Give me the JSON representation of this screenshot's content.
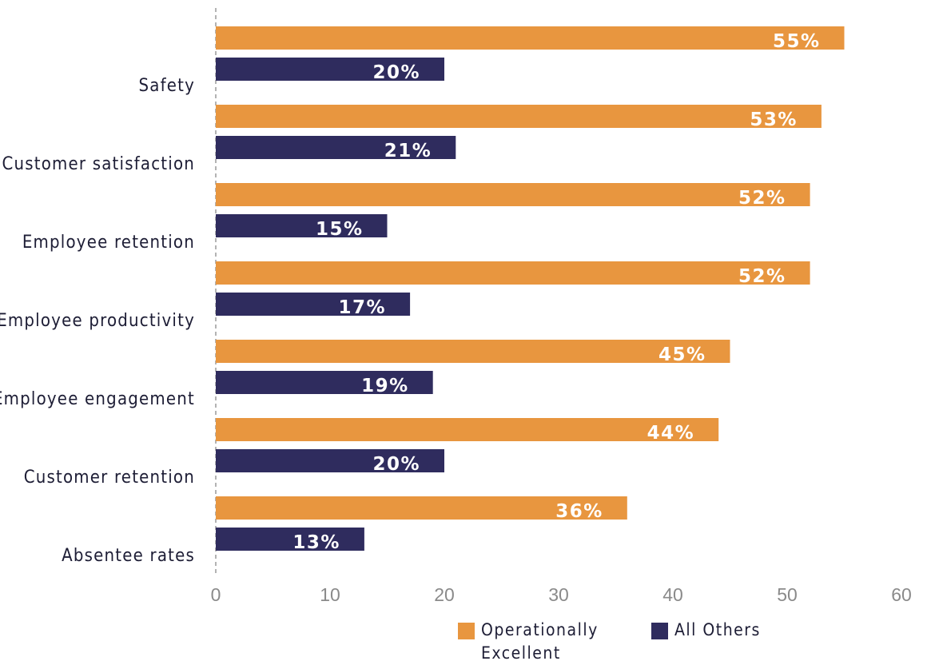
{
  "chart_data": {
    "type": "bar",
    "orientation": "horizontal",
    "categories": [
      "Safety",
      "Customer satisfaction",
      "Employee retention",
      "Employee productivity",
      "Employee engagement",
      "Customer retention",
      "Absentee rates"
    ],
    "series": [
      {
        "name": "Operationally Excellent",
        "color": "#E8963F",
        "values": [
          55,
          53,
          52,
          52,
          45,
          44,
          36
        ],
        "labels": [
          "55%",
          "53%",
          "52%",
          "52%",
          "45%",
          "44%",
          "36%"
        ]
      },
      {
        "name": "All Others",
        "color": "#2F2C5E",
        "values": [
          20,
          21,
          15,
          17,
          19,
          20,
          13
        ],
        "labels": [
          "20%",
          "21%",
          "15%",
          "17%",
          "19%",
          "20%",
          "13%"
        ]
      }
    ],
    "xlim": [
      0,
      60
    ],
    "xticks": [
      "0",
      "10",
      "20",
      "30",
      "40",
      "50",
      "60"
    ],
    "legend_position": "bottom",
    "grid": false
  }
}
